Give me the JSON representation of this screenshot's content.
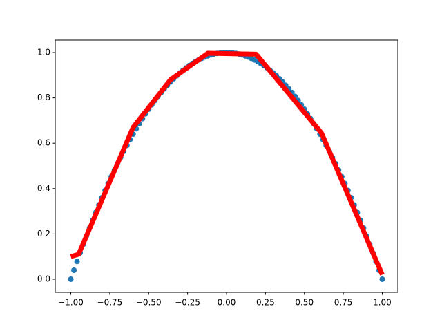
{
  "chart_data": {
    "type": "scatter",
    "xlim": [
      -1.1,
      1.1
    ],
    "ylim": [
      -0.058,
      1.055
    ],
    "grid": false,
    "xticks": [
      {
        "value": -1,
        "label": "−1.00"
      },
      {
        "value": -0.75,
        "label": "−0.75"
      },
      {
        "value": -0.5,
        "label": "−0.50"
      },
      {
        "value": -0.25,
        "label": "−0.25"
      },
      {
        "value": 0,
        "label": "0.00"
      },
      {
        "value": 0.25,
        "label": "0.25"
      },
      {
        "value": 0.5,
        "label": "0.50"
      },
      {
        "value": 0.75,
        "label": "0.75"
      },
      {
        "value": 1,
        "label": "1.00"
      }
    ],
    "yticks": [
      {
        "value": 0,
        "label": "0.0"
      },
      0.2,
      0.4,
      0.6,
      0.8,
      {
        "value": 1,
        "label": "1.0"
      }
    ],
    "series": [
      {
        "type": "scatter",
        "color": "#1f77b4",
        "x": [
          -1,
          -0.98,
          -0.96,
          -0.94,
          -0.92,
          -0.9,
          -0.88,
          -0.86,
          -0.84,
          -0.82,
          -0.8,
          -0.78,
          -0.76,
          -0.74,
          -0.72,
          -0.7,
          -0.68,
          -0.66,
          -0.64,
          -0.62,
          -0.6,
          -0.58,
          -0.56,
          -0.54,
          -0.52,
          -0.5,
          -0.48,
          -0.46,
          -0.44,
          -0.42,
          -0.4,
          -0.38,
          -0.36,
          -0.34,
          -0.32,
          -0.3,
          -0.28,
          -0.26,
          -0.24,
          -0.22,
          -0.2,
          -0.18,
          -0.16,
          -0.14,
          -0.12,
          -0.1,
          -0.08,
          -0.06,
          -0.04,
          -0.02,
          0,
          0.02,
          0.04,
          0.06,
          0.08,
          0.1,
          0.12,
          0.14,
          0.16,
          0.18,
          0.2,
          0.22,
          0.24,
          0.26,
          0.28,
          0.3,
          0.32,
          0.34,
          0.36,
          0.38,
          0.4,
          0.42,
          0.44,
          0.46,
          0.48,
          0.5,
          0.52,
          0.54,
          0.56,
          0.58,
          0.6,
          0.62,
          0.64,
          0.66,
          0.68,
          0.7,
          0.72,
          0.74,
          0.76,
          0.78,
          0.8,
          0.82,
          0.84,
          0.86,
          0.88,
          0.9,
          0.92,
          0.94,
          0.96,
          0.98,
          1
        ],
        "values": [
          0,
          0.0396,
          0.0784,
          0.1164,
          0.1536,
          0.19,
          0.2256,
          0.2604,
          0.2944,
          0.3276,
          0.36,
          0.3916,
          0.4224,
          0.4524,
          0.4816,
          0.51,
          0.5376,
          0.5644,
          0.5904,
          0.6156,
          0.64,
          0.6636,
          0.6864,
          0.7084,
          0.7296,
          0.75,
          0.7696,
          0.7884,
          0.8064,
          0.8236,
          0.84,
          0.8556,
          0.8704,
          0.8844,
          0.8976,
          0.91,
          0.9216,
          0.9324,
          0.9424,
          0.9516,
          0.96,
          0.9676,
          0.9744,
          0.9804,
          0.9856,
          0.99,
          0.9936,
          0.9964,
          0.9984,
          0.9996,
          1,
          0.9996,
          0.9984,
          0.9964,
          0.9936,
          0.99,
          0.9856,
          0.9804,
          0.9744,
          0.9676,
          0.96,
          0.9516,
          0.9424,
          0.9324,
          0.9216,
          0.91,
          0.8976,
          0.8844,
          0.8704,
          0.8556,
          0.84,
          0.8236,
          0.8064,
          0.7884,
          0.7696,
          0.75,
          0.7296,
          0.7084,
          0.6864,
          0.6636,
          0.64,
          0.6156,
          0.5904,
          0.5644,
          0.5376,
          0.51,
          0.4816,
          0.4524,
          0.4224,
          0.3916,
          0.36,
          0.3276,
          0.2944,
          0.2604,
          0.2256,
          0.19,
          0.1536,
          0.1164,
          0.0784,
          0.0396,
          0
        ]
      },
      {
        "type": "line",
        "color": "#ff0000",
        "x": [
          -1,
          -0.95,
          -0.6,
          -0.36,
          -0.12,
          0.19,
          0.61,
          1
        ],
        "values": [
          0.1,
          0.11,
          0.67,
          0.88,
          0.997,
          0.993,
          0.645,
          0.02
        ]
      }
    ]
  }
}
